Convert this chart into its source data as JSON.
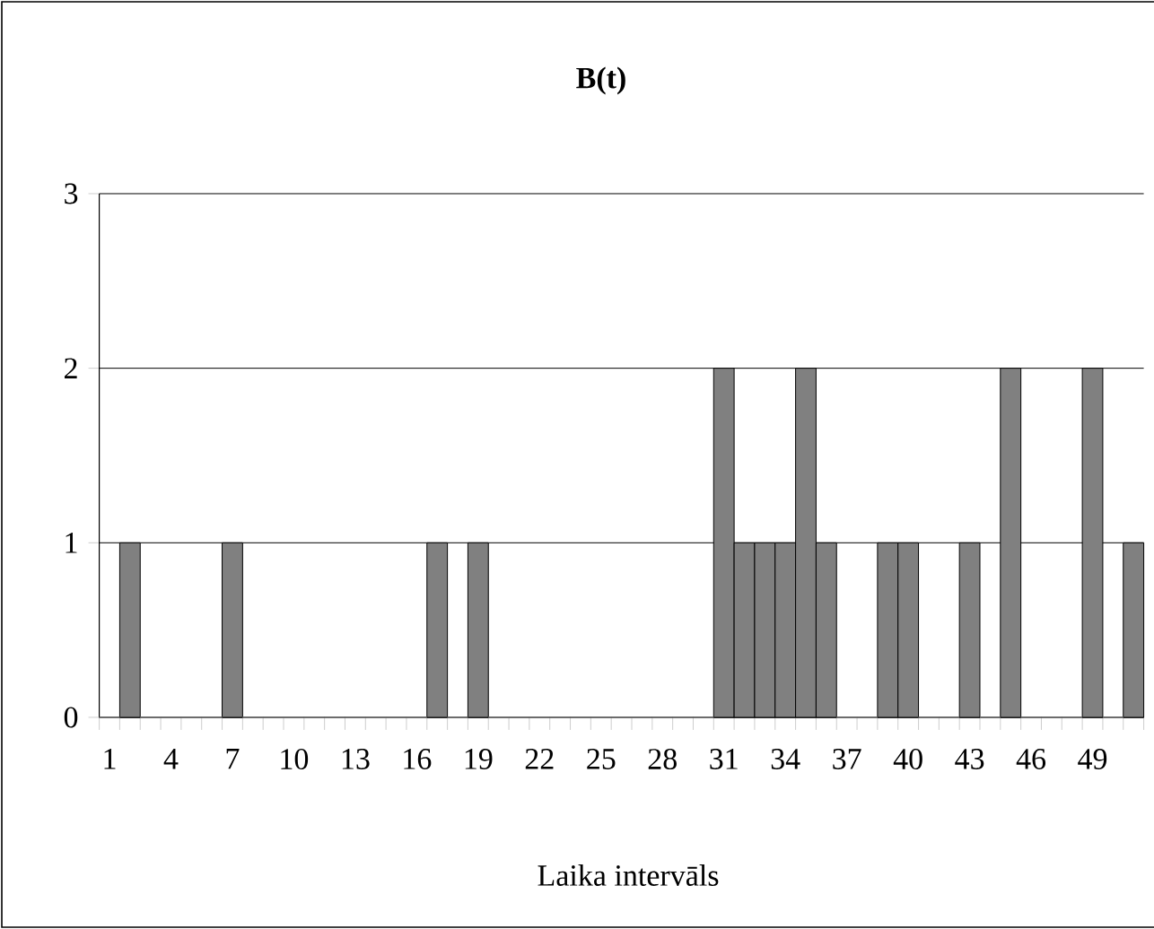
{
  "chart_data": {
    "type": "bar",
    "title": "**B(t)**",
    "xlabel": "Laika intervāls",
    "categories": [
      "1",
      null,
      null,
      "4",
      null,
      null,
      "7",
      null,
      null,
      "10",
      null,
      null,
      "13",
      null,
      null,
      "16",
      null,
      null,
      "19",
      null,
      null,
      "22",
      null,
      null,
      "25",
      null,
      null,
      "28",
      null,
      null,
      "31",
      null,
      null,
      "34",
      null,
      null,
      "37",
      null,
      null,
      "40",
      null,
      null,
      "43",
      null,
      null,
      "46",
      null,
      null,
      "49",
      null,
      null
    ],
    "values": [
      0,
      1,
      0,
      0,
      0,
      0,
      1,
      0,
      0,
      0,
      0,
      0,
      0,
      0,
      0,
      0,
      1,
      0,
      1,
      0,
      0,
      0,
      0,
      0,
      0,
      0,
      0,
      0,
      0,
      0,
      2,
      1,
      1,
      1,
      2,
      1,
      0,
      0,
      1,
      1,
      0,
      0,
      1,
      0,
      2,
      0,
      0,
      0,
      2,
      0,
      1
    ],
    "color": "#808080",
    "ylim": [
      0,
      3
    ],
    "yticks": [
      0,
      1,
      2,
      3
    ],
    "grid": "y"
  }
}
